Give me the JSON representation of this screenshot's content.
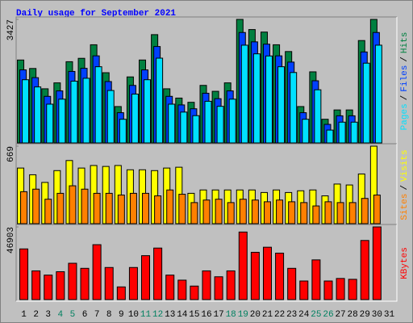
{
  "chart_data": [
    {
      "type": "bar",
      "title": "Daily usage for September 2021",
      "legend_separator": "/",
      "ylim": [
        0,
        3427
      ],
      "yticks": [
        3427
      ],
      "series": [
        {
          "name": "Hits",
          "color": "#008040",
          "values": [
            2300,
            2065,
            1502,
            1666,
            2253,
            2347,
            2723,
            1948,
            1009,
            1831,
            2300,
            3004,
            1502,
            1244,
            1127,
            1596,
            1432,
            1666,
            3427,
            3145,
            3075,
            2723,
            2535,
            1009,
            1972,
            657,
            915,
            915,
            2840,
            3427,
            0
          ]
        },
        {
          "name": "Files",
          "color": "#0040ff",
          "values": [
            2116,
            1900,
            1382,
            1533,
            2073,
            2159,
            2505,
            1792,
            928,
            1685,
            2116,
            2764,
            1382,
            1144,
            1037,
            1468,
            1317,
            1533,
            3153,
            2893,
            2829,
            2505,
            2332,
            928,
            1814,
            604,
            842,
            842,
            2613,
            3153,
            0
          ]
        },
        {
          "name": "Pages",
          "color": "#00e0ff",
          "values": [
            1955,
            1755,
            1277,
            1416,
            1915,
            1995,
            2315,
            1656,
            858,
            1556,
            1955,
            2553,
            1277,
            1057,
            958,
            1357,
            1217,
            1416,
            2913,
            2673,
            2614,
            2315,
            2155,
            858,
            1676,
            558,
            778,
            778,
            2414,
            2913,
            0
          ]
        }
      ]
    },
    {
      "type": "bar",
      "legend_separator": "/",
      "ylim": [
        0,
        669
      ],
      "yticks": [
        669
      ],
      "series": [
        {
          "name": "Visits",
          "color": "#ffff00",
          "values": [
            480,
            422,
            356,
            458,
            545,
            480,
            502,
            494,
            502,
            465,
            465,
            458,
            480,
            487,
            262,
            291,
            291,
            291,
            291,
            291,
            269,
            291,
            269,
            284,
            291,
            240,
            342,
            334,
            429,
            669,
            0
          ]
        },
        {
          "name": "Sites",
          "color": "#ff8000",
          "values": [
            276,
            298,
            211,
            262,
            327,
            298,
            262,
            262,
            247,
            262,
            262,
            240,
            291,
            254,
            182,
            204,
            211,
            182,
            211,
            204,
            189,
            204,
            189,
            182,
            153,
            189,
            182,
            182,
            218,
            247,
            0
          ]
        }
      ]
    },
    {
      "type": "bar",
      "ylim": [
        0,
        46903
      ],
      "yticks": [
        46903
      ],
      "categories": [
        "1",
        "2",
        "3",
        "4",
        "5",
        "6",
        "7",
        "8",
        "9",
        "10",
        "11",
        "12",
        "13",
        "14",
        "15",
        "16",
        "17",
        "18",
        "19",
        "20",
        "21",
        "22",
        "23",
        "24",
        "25",
        "26",
        "27",
        "28",
        "29",
        "30",
        "31"
      ],
      "category_colors": [
        "#000000",
        "#000000",
        "#000000",
        "#008060",
        "#008060",
        "#000000",
        "#000000",
        "#000000",
        "#000000",
        "#000000",
        "#008060",
        "#008060",
        "#000000",
        "#000000",
        "#000000",
        "#000000",
        "#000000",
        "#008060",
        "#008060",
        "#000000",
        "#000000",
        "#000000",
        "#000000",
        "#000000",
        "#008060",
        "#008060",
        "#000000",
        "#000000",
        "#000000",
        "#000000",
        "#000000"
      ],
      "series": [
        {
          "name": "KBytes",
          "color": "#ff0000",
          "values": [
            32700,
            18530,
            15800,
            17990,
            23440,
            20170,
            35430,
            20710,
            8180,
            20710,
            28340,
            33250,
            15800,
            12540,
            8720,
            18530,
            14720,
            18530,
            43600,
            30520,
            33790,
            29980,
            20170,
            11990,
            25620,
            11990,
            13630,
            13080,
            38150,
            46903,
            0
          ]
        }
      ]
    }
  ]
}
